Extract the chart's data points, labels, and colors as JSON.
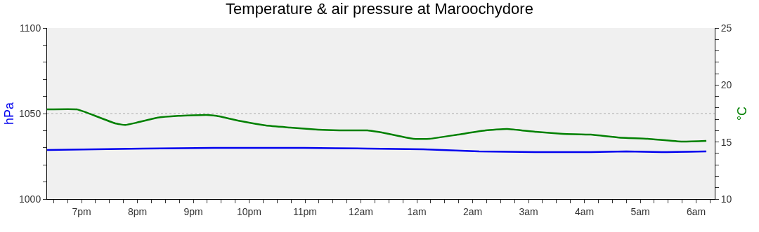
{
  "chart_data": {
    "type": "line",
    "title": "Temperature & air pressure at Maroochydore",
    "ylabel": "hPa",
    "y2label": "°C",
    "xlim": [
      "--01-01T18:23",
      "--01-02T06:20"
    ],
    "xticks": [
      {
        "value": "--01-01T19:00",
        "label": "7pm"
      },
      {
        "value": "--01-01T20:00",
        "label": "8pm"
      },
      {
        "value": "--01-01T21:00",
        "label": "9pm"
      },
      {
        "value": "--01-01T22:00",
        "label": "10pm"
      },
      {
        "value": "--01-01T23:00",
        "label": "11pm"
      },
      {
        "value": "--01-02T00:00",
        "label": "12am"
      },
      {
        "value": "--01-02T01:00",
        "label": "1am"
      },
      {
        "value": "--01-02T02:00",
        "label": "2am"
      },
      {
        "value": "--01-02T03:00",
        "label": "3am"
      },
      {
        "value": "--01-02T04:00",
        "label": "4am"
      },
      {
        "value": "--01-02T05:00",
        "label": "5am"
      },
      {
        "value": "--01-02T06:00",
        "label": "6am"
      },
      {
        "value": "--01-01T18:30",
        "label": null
      },
      {
        "value": "--01-01T18:45",
        "label": null
      },
      {
        "value": "--01-01T19:15",
        "label": null
      },
      {
        "value": "--01-01T19:30",
        "label": null
      },
      {
        "value": "--01-01T19:45",
        "label": null
      },
      {
        "value": "--01-01T20:15",
        "label": null
      },
      {
        "value": "--01-01T20:30",
        "label": null
      },
      {
        "value": "--01-01T20:45",
        "label": null
      },
      {
        "value": "--01-01T21:15",
        "label": null
      },
      {
        "value": "--01-01T21:30",
        "label": null
      },
      {
        "value": "--01-01T21:45",
        "label": null
      },
      {
        "value": "--01-01T22:15",
        "label": null
      },
      {
        "value": "--01-01T22:30",
        "label": null
      },
      {
        "value": "--01-01T22:45",
        "label": null
      },
      {
        "value": "--01-01T23:15",
        "label": null
      },
      {
        "value": "--01-01T23:30",
        "label": null
      },
      {
        "value": "--01-01T23:45",
        "label": null
      },
      {
        "value": "--01-02T00:15",
        "label": null
      },
      {
        "value": "--01-02T00:30",
        "label": null
      },
      {
        "value": "--01-02T00:45",
        "label": null
      },
      {
        "value": "--01-02T01:15",
        "label": null
      },
      {
        "value": "--01-02T01:30",
        "label": null
      },
      {
        "value": "--01-02T01:45",
        "label": null
      },
      {
        "value": "--01-02T02:15",
        "label": null
      },
      {
        "value": "--01-02T02:30",
        "label": null
      },
      {
        "value": "--01-02T02:45",
        "label": null
      },
      {
        "value": "--01-02T03:15",
        "label": null
      },
      {
        "value": "--01-02T03:30",
        "label": null
      },
      {
        "value": "--01-02T03:45",
        "label": null
      },
      {
        "value": "--01-02T04:15",
        "label": null
      },
      {
        "value": "--01-02T04:30",
        "label": null
      },
      {
        "value": "--01-02T04:45",
        "label": null
      },
      {
        "value": "--01-02T05:15",
        "label": null
      },
      {
        "value": "--01-02T05:30",
        "label": null
      },
      {
        "value": "--01-02T05:45",
        "label": null
      },
      {
        "value": "--01-02T06:15",
        "label": null
      }
    ],
    "ylim": [
      1000,
      1100
    ],
    "yticks": [
      1000,
      1050,
      1100,
      {
        "value": 1010,
        "label": null
      },
      {
        "value": 1020,
        "label": null
      },
      {
        "value": 1030,
        "label": null
      },
      {
        "value": 1040,
        "label": null
      },
      {
        "value": 1060,
        "label": null
      },
      {
        "value": 1070,
        "label": null
      },
      {
        "value": 1080,
        "label": null
      },
      {
        "value": 1090,
        "label": null
      }
    ],
    "y2lim": [
      10,
      25
    ],
    "y2ticks": [
      10,
      15,
      20,
      25,
      {
        "value": 11,
        "label": null
      },
      {
        "value": 12,
        "label": null
      },
      {
        "value": 13,
        "label": null
      },
      {
        "value": 14,
        "label": null
      },
      {
        "value": 16,
        "label": null
      },
      {
        "value": 17,
        "label": null
      },
      {
        "value": 18,
        "label": null
      },
      {
        "value": 19,
        "label": null
      },
      {
        "value": 21,
        "label": null
      },
      {
        "value": 22,
        "label": null
      },
      {
        "value": 23,
        "label": null
      },
      {
        "value": 24,
        "label": null
      }
    ],
    "grid": false,
    "marker": "none",
    "line_style": "solid",
    "ref_lines": [
      {
        "axis": "y",
        "value": 1050,
        "color": "#aaaaaa",
        "line_style": "dotted"
      }
    ],
    "series": [
      {
        "color": "#0000ee",
        "x": [
          "--01-01T18:23",
          "--01-01T20:06",
          "--01-01T21:22",
          "--01-01T22:59",
          "--01-02T00:07",
          "--01-02T01:07",
          "--01-02T02:07",
          "--01-02T03:07",
          "--01-02T04:07",
          "--01-02T04:45",
          "--01-02T05:23",
          "--01-02T06:11"
        ],
        "values": [
          1028.7,
          1029.5,
          1029.9,
          1029.9,
          1029.5,
          1029.1,
          1027.9,
          1027.5,
          1027.5,
          1027.9,
          1027.5,
          1027.9
        ]
      },
      {
        "color": "#008000",
        "axis": "y2",
        "x": [
          "--01-01T18:23",
          "--01-01T18:55",
          "--01-01T19:05",
          "--01-01T19:36",
          "--01-01T19:47",
          "--01-01T19:59",
          "--01-01T20:21",
          "--01-01T20:44",
          "--01-01T21:14",
          "--01-01T21:25",
          "--01-01T21:52",
          "--01-01T22:18",
          "--01-01T22:44",
          "--01-01T23:14",
          "--01-01T23:37",
          "--01-02T00:07",
          "--01-02T00:26",
          "--01-02T00:56",
          "--01-02T01:14",
          "--01-02T01:44",
          "--01-02T02:14",
          "--01-02T02:37",
          "--01-02T03:07",
          "--01-02T03:37",
          "--01-02T04:07",
          "--01-02T04:37",
          "--01-02T05:08",
          "--01-02T05:45",
          "--01-02T06:11"
        ],
        "values": [
          17.87,
          17.87,
          17.6,
          16.64,
          16.5,
          16.7,
          17.13,
          17.3,
          17.38,
          17.3,
          16.82,
          16.45,
          16.27,
          16.08,
          16.02,
          16.02,
          15.78,
          15.29,
          15.29,
          15.65,
          16.02,
          16.15,
          15.9,
          15.72,
          15.65,
          15.4,
          15.29,
          15.04,
          15.1
        ]
      }
    ]
  }
}
